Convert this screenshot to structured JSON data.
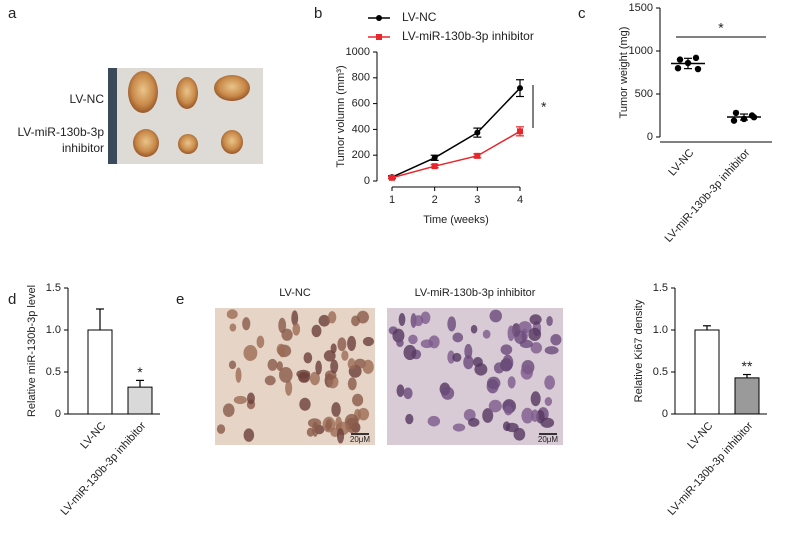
{
  "panels": [
    "a",
    "b",
    "c",
    "d",
    "e"
  ],
  "photo": {
    "labels": [
      "LV-NC",
      "LV-miR-130b-3p inhibitor"
    ]
  },
  "micrographs": {
    "titles": [
      "LV-NC",
      "LV-miR-130b-3p inhibitor"
    ],
    "scale_bar": "20μM"
  },
  "chart_data": [
    {
      "type": "line",
      "xlabel": "Time (weeks)",
      "ylabel": "Tumor volumn (mm³)",
      "x": [
        1,
        2,
        3,
        4
      ],
      "xlim": [
        1,
        4
      ],
      "xticks": [
        1,
        2,
        3,
        4
      ],
      "ylim": [
        0,
        1000
      ],
      "yticks": [
        0,
        200,
        400,
        600,
        800,
        1000
      ],
      "series": [
        {
          "name": "LV-NC",
          "color": "#000000",
          "marker": "circle",
          "values": [
            30,
            180,
            375,
            720
          ],
          "errors": [
            10,
            20,
            35,
            65
          ]
        },
        {
          "name": "LV-miR-130b-3p inhibitor",
          "color": "#e8262b",
          "marker": "square",
          "values": [
            25,
            115,
            195,
            385
          ],
          "errors": [
            8,
            12,
            15,
            35
          ]
        }
      ],
      "annotation": "*"
    },
    {
      "type": "dot",
      "ylabel": "Tumor weight (mg)",
      "categories": [
        "LV-NC",
        "LV-miR-130b-3p inhibitor"
      ],
      "points": [
        [
          900,
          920,
          860,
          800,
          790
        ],
        [
          280,
          250,
          210,
          190,
          230
        ]
      ],
      "means": [
        855,
        232
      ],
      "errors": [
        60,
        35
      ],
      "color": "#000000",
      "ylim": [
        0,
        1500
      ],
      "yticks": [
        0,
        500,
        1000,
        1500
      ],
      "annotation": "*"
    },
    {
      "type": "bar",
      "ylabel": "Relative miR-130b-3p level",
      "categories": [
        "LV-NC",
        "LV-miR-130b-3p inhibitor"
      ],
      "values": [
        1.0,
        0.32
      ],
      "errors": [
        0.25,
        0.08
      ],
      "colors": [
        "#ffffff",
        "#d9d9d9"
      ],
      "markers": [
        null,
        "*"
      ],
      "ylim": [
        0,
        1.5
      ],
      "yticks": [
        0,
        0.5,
        {
          "value": 1,
          "label": "1.0"
        },
        1.5
      ]
    },
    {
      "type": "bar",
      "ylabel": "Relative Ki67 density",
      "categories": [
        "LV-NC",
        "LV-miR-130b-3p inhibitor"
      ],
      "values": [
        1.0,
        0.43
      ],
      "errors": [
        0.05,
        0.04
      ],
      "colors": [
        "#ffffff",
        "#9a9a9a"
      ],
      "markers": [
        null,
        "**"
      ],
      "ylim": [
        0,
        1.5
      ],
      "yticks": [
        0,
        0.5,
        {
          "value": 1,
          "label": "1.0"
        },
        1.5
      ]
    }
  ]
}
